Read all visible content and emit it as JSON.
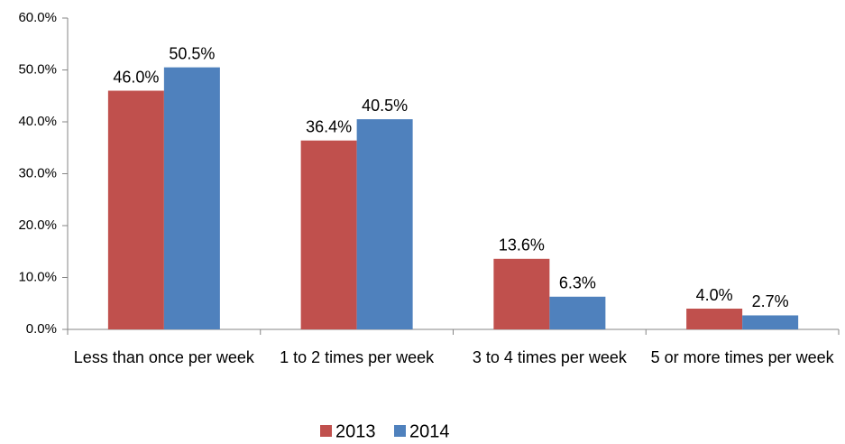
{
  "chart_data": {
    "type": "bar",
    "categories": [
      "Less than once per week",
      "1 to 2 times per week",
      "3 to 4 times per week",
      "5 or more times per week"
    ],
    "series": [
      {
        "name": "2013",
        "color": "#c0504d",
        "values": [
          46.0,
          36.4,
          13.6,
          4.0
        ],
        "value_labels": [
          "46.0%",
          "36.4%",
          "13.6%",
          "4.0%"
        ]
      },
      {
        "name": "2014",
        "color": "#4f81bd",
        "values": [
          50.5,
          40.5,
          6.3,
          2.7
        ],
        "value_labels": [
          "50.5%",
          "40.5%",
          "6.3%",
          "2.7%"
        ]
      }
    ],
    "ylim": [
      0,
      60
    ],
    "yticks": [
      {
        "value": 0,
        "label": "0.0%"
      },
      {
        "value": 10,
        "label": "10.0%"
      },
      {
        "value": 20,
        "label": "20.0%"
      },
      {
        "value": 30,
        "label": "30.0%"
      },
      {
        "value": 40,
        "label": "40.0%"
      },
      {
        "value": 50,
        "label": "50.0%"
      },
      {
        "value": 60,
        "label": "60.0%"
      }
    ],
    "grid": false,
    "legend": "bottom"
  }
}
